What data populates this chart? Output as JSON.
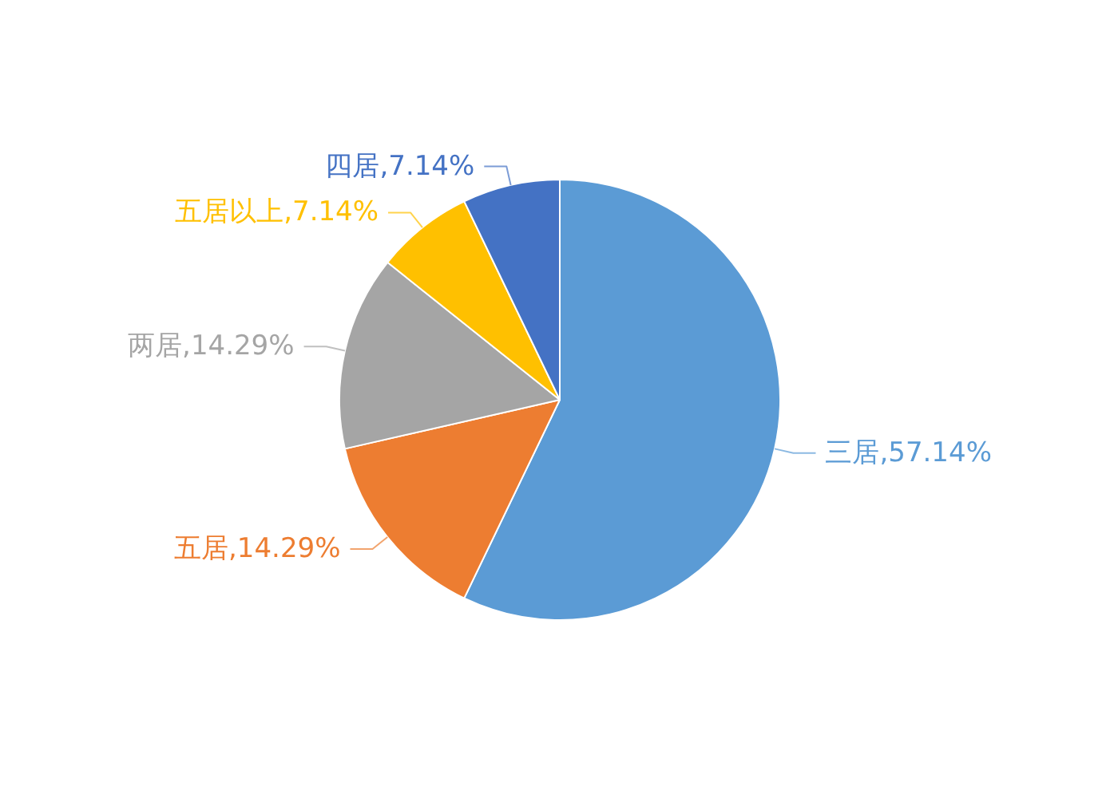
{
  "chart_data": {
    "type": "pie",
    "categories": [
      "三居",
      "五居",
      "两居",
      "五居以上",
      "四居"
    ],
    "values": [
      57.14,
      14.29,
      14.29,
      7.14,
      7.14
    ],
    "colors": [
      "#5b9bd5",
      "#ed7d31",
      "#a5a5a5",
      "#ffc000",
      "#4472c4"
    ],
    "value_labels": [
      ",57.14%",
      ",14.29%",
      ",14.29%",
      ",7.14%",
      ",7.14%"
    ]
  }
}
